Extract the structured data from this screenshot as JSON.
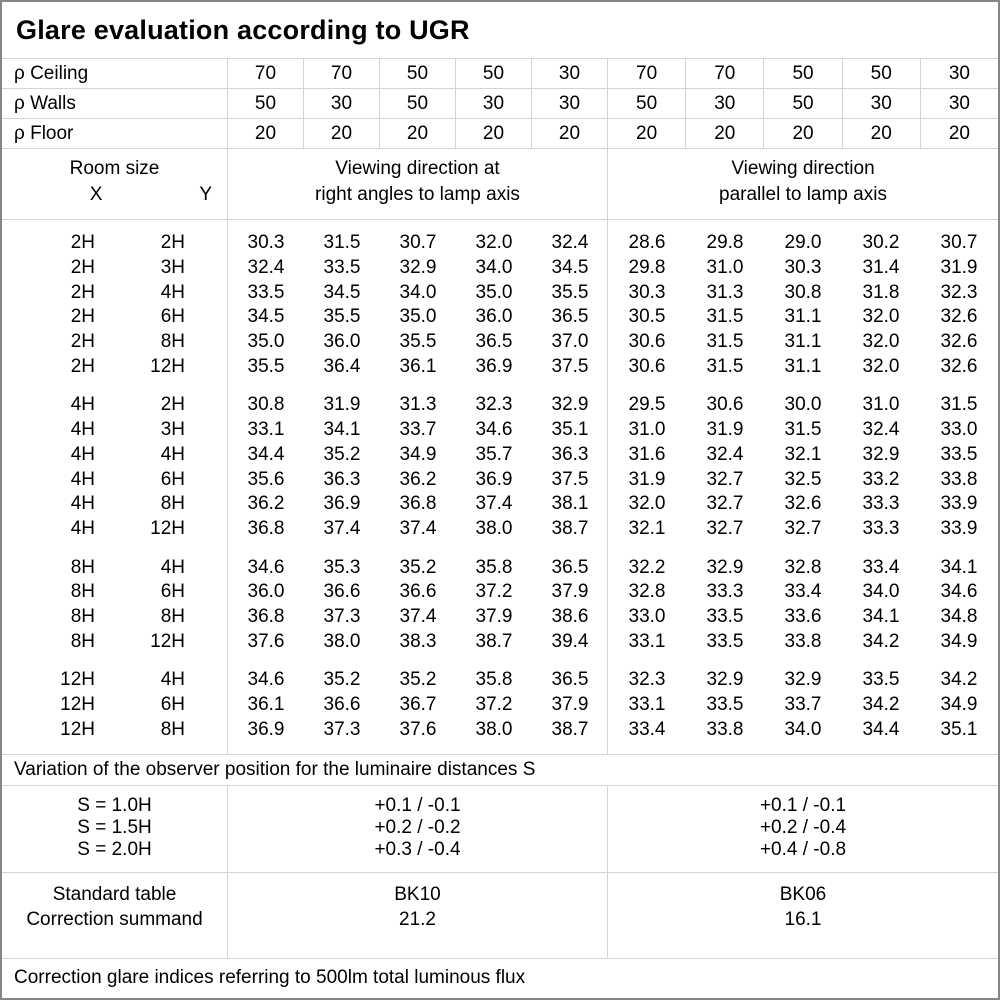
{
  "title": "Glare evaluation according to UGR",
  "colors": {
    "outer_border": "#868686",
    "grid_line": "#d4d4d4",
    "text": "#000000",
    "background": "#ffffff"
  },
  "reflectance": {
    "rows": [
      {
        "label": "ρ Ceiling",
        "values": [
          "70",
          "70",
          "50",
          "50",
          "30",
          "70",
          "70",
          "50",
          "50",
          "30"
        ]
      },
      {
        "label": "ρ Walls",
        "values": [
          "50",
          "30",
          "50",
          "30",
          "30",
          "50",
          "30",
          "50",
          "30",
          "30"
        ]
      },
      {
        "label": "ρ Floor",
        "values": [
          "20",
          "20",
          "20",
          "20",
          "20",
          "20",
          "20",
          "20",
          "20",
          "20"
        ]
      }
    ]
  },
  "header": {
    "room_size_label": "Room size",
    "x_label": "X",
    "y_label": "Y",
    "group1_line1": "Viewing direction at",
    "group1_line2": "right angles to lamp axis",
    "group2_line1": "Viewing direction",
    "group2_line2": "parallel to lamp axis"
  },
  "ugr_table": {
    "blocks": [
      {
        "rows": [
          {
            "x": "2H",
            "y": "2H",
            "right_angles": [
              "30.3",
              "31.5",
              "30.7",
              "32.0",
              "32.4"
            ],
            "parallel": [
              "28.6",
              "29.8",
              "29.0",
              "30.2",
              "30.7"
            ]
          },
          {
            "x": "2H",
            "y": "3H",
            "right_angles": [
              "32.4",
              "33.5",
              "32.9",
              "34.0",
              "34.5"
            ],
            "parallel": [
              "29.8",
              "31.0",
              "30.3",
              "31.4",
              "31.9"
            ]
          },
          {
            "x": "2H",
            "y": "4H",
            "right_angles": [
              "33.5",
              "34.5",
              "34.0",
              "35.0",
              "35.5"
            ],
            "parallel": [
              "30.3",
              "31.3",
              "30.8",
              "31.8",
              "32.3"
            ]
          },
          {
            "x": "2H",
            "y": "6H",
            "right_angles": [
              "34.5",
              "35.5",
              "35.0",
              "36.0",
              "36.5"
            ],
            "parallel": [
              "30.5",
              "31.5",
              "31.1",
              "32.0",
              "32.6"
            ]
          },
          {
            "x": "2H",
            "y": "8H",
            "right_angles": [
              "35.0",
              "36.0",
              "35.5",
              "36.5",
              "37.0"
            ],
            "parallel": [
              "30.6",
              "31.5",
              "31.1",
              "32.0",
              "32.6"
            ]
          },
          {
            "x": "2H",
            "y": "12H",
            "right_angles": [
              "35.5",
              "36.4",
              "36.1",
              "36.9",
              "37.5"
            ],
            "parallel": [
              "30.6",
              "31.5",
              "31.1",
              "32.0",
              "32.6"
            ]
          }
        ]
      },
      {
        "rows": [
          {
            "x": "4H",
            "y": "2H",
            "right_angles": [
              "30.8",
              "31.9",
              "31.3",
              "32.3",
              "32.9"
            ],
            "parallel": [
              "29.5",
              "30.6",
              "30.0",
              "31.0",
              "31.5"
            ]
          },
          {
            "x": "4H",
            "y": "3H",
            "right_angles": [
              "33.1",
              "34.1",
              "33.7",
              "34.6",
              "35.1"
            ],
            "parallel": [
              "31.0",
              "31.9",
              "31.5",
              "32.4",
              "33.0"
            ]
          },
          {
            "x": "4H",
            "y": "4H",
            "right_angles": [
              "34.4",
              "35.2",
              "34.9",
              "35.7",
              "36.3"
            ],
            "parallel": [
              "31.6",
              "32.4",
              "32.1",
              "32.9",
              "33.5"
            ]
          },
          {
            "x": "4H",
            "y": "6H",
            "right_angles": [
              "35.6",
              "36.3",
              "36.2",
              "36.9",
              "37.5"
            ],
            "parallel": [
              "31.9",
              "32.7",
              "32.5",
              "33.2",
              "33.8"
            ]
          },
          {
            "x": "4H",
            "y": "8H",
            "right_angles": [
              "36.2",
              "36.9",
              "36.8",
              "37.4",
              "38.1"
            ],
            "parallel": [
              "32.0",
              "32.7",
              "32.6",
              "33.3",
              "33.9"
            ]
          },
          {
            "x": "4H",
            "y": "12H",
            "right_angles": [
              "36.8",
              "37.4",
              "37.4",
              "38.0",
              "38.7"
            ],
            "parallel": [
              "32.1",
              "32.7",
              "32.7",
              "33.3",
              "33.9"
            ]
          }
        ]
      },
      {
        "rows": [
          {
            "x": "8H",
            "y": "4H",
            "right_angles": [
              "34.6",
              "35.3",
              "35.2",
              "35.8",
              "36.5"
            ],
            "parallel": [
              "32.2",
              "32.9",
              "32.8",
              "33.4",
              "34.1"
            ]
          },
          {
            "x": "8H",
            "y": "6H",
            "right_angles": [
              "36.0",
              "36.6",
              "36.6",
              "37.2",
              "37.9"
            ],
            "parallel": [
              "32.8",
              "33.3",
              "33.4",
              "34.0",
              "34.6"
            ]
          },
          {
            "x": "8H",
            "y": "8H",
            "right_angles": [
              "36.8",
              "37.3",
              "37.4",
              "37.9",
              "38.6"
            ],
            "parallel": [
              "33.0",
              "33.5",
              "33.6",
              "34.1",
              "34.8"
            ]
          },
          {
            "x": "8H",
            "y": "12H",
            "right_angles": [
              "37.6",
              "38.0",
              "38.3",
              "38.7",
              "39.4"
            ],
            "parallel": [
              "33.1",
              "33.5",
              "33.8",
              "34.2",
              "34.9"
            ]
          }
        ]
      },
      {
        "rows": [
          {
            "x": "12H",
            "y": "4H",
            "right_angles": [
              "34.6",
              "35.2",
              "35.2",
              "35.8",
              "36.5"
            ],
            "parallel": [
              "32.3",
              "32.9",
              "32.9",
              "33.5",
              "34.2"
            ]
          },
          {
            "x": "12H",
            "y": "6H",
            "right_angles": [
              "36.1",
              "36.6",
              "36.7",
              "37.2",
              "37.9"
            ],
            "parallel": [
              "33.1",
              "33.5",
              "33.7",
              "34.2",
              "34.9"
            ]
          },
          {
            "x": "12H",
            "y": "8H",
            "right_angles": [
              "36.9",
              "37.3",
              "37.6",
              "38.0",
              "38.7"
            ],
            "parallel": [
              "33.4",
              "33.8",
              "34.0",
              "34.4",
              "35.1"
            ]
          }
        ]
      }
    ]
  },
  "variation": {
    "heading": "Variation of the observer position for the luminaire distances S",
    "rows": [
      {
        "s": "S = 1.0H",
        "right_angles": "+0.1 / -0.1",
        "parallel": "+0.1 / -0.1"
      },
      {
        "s": "S = 1.5H",
        "right_angles": "+0.2 / -0.2",
        "parallel": "+0.2 / -0.4"
      },
      {
        "s": "S = 2.0H",
        "right_angles": "+0.3 / -0.4",
        "parallel": "+0.4 / -0.8"
      }
    ]
  },
  "standard": {
    "labels": [
      "Standard table",
      "Correction summand"
    ],
    "right_angles": [
      "BK10",
      "21.2"
    ],
    "parallel": [
      "BK06",
      "16.1"
    ]
  },
  "footer": "Correction glare indices referring to 500lm total luminous flux"
}
